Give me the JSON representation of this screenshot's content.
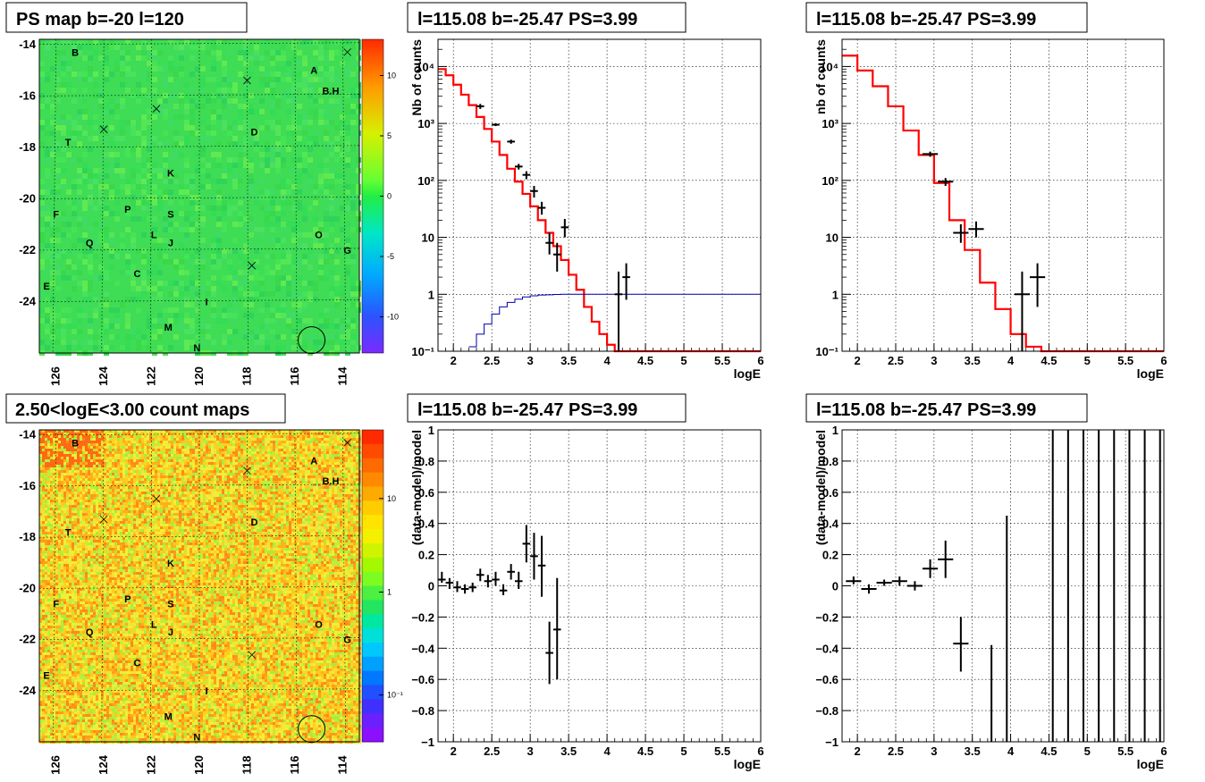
{
  "colors": {
    "model": "#ff0000",
    "efficiency": "#0000aa",
    "data": "#000000"
  },
  "maps": [
    {
      "title": "PS map b=-20 l=120",
      "type": "ts_map",
      "y_ticks": [
        "-14",
        "-16",
        "-18",
        "-20",
        "-22",
        "-24"
      ],
      "x_ticks": [
        "126",
        "124",
        "122",
        "120",
        "118",
        "116",
        "114"
      ],
      "colorbar_ticks": [
        "10",
        "5",
        "0",
        "-5",
        "-10"
      ]
    },
    {
      "title": "2.50<logE<3.00 count maps",
      "type": "count_map",
      "y_ticks": [
        "-14",
        "-16",
        "-18",
        "-20",
        "-22",
        "-24"
      ],
      "x_ticks": [
        "126",
        "124",
        "122",
        "120",
        "118",
        "116",
        "114"
      ],
      "colorbar_ticks": [
        "10",
        "1",
        "10⁻¹"
      ]
    }
  ],
  "sources": [
    {
      "name": "B",
      "l": 125.2,
      "b": -14.3
    },
    {
      "name": "A",
      "l": 115.2,
      "b": -15.0
    },
    {
      "name": "B.H",
      "l": 114.5,
      "b": -15.8
    },
    {
      "name": "D",
      "l": 117.7,
      "b": -17.4
    },
    {
      "name": "T",
      "l": 125.5,
      "b": -17.8
    },
    {
      "name": "K",
      "l": 121.2,
      "b": -19.0
    },
    {
      "name": "F",
      "l": 126.0,
      "b": -20.6
    },
    {
      "name": "P",
      "l": 123.0,
      "b": -20.4
    },
    {
      "name": "S",
      "l": 121.2,
      "b": -20.6
    },
    {
      "name": "O",
      "l": 115.0,
      "b": -21.4
    },
    {
      "name": "L",
      "l": 121.9,
      "b": -21.4
    },
    {
      "name": "J",
      "l": 121.2,
      "b": -21.7
    },
    {
      "name": "Q",
      "l": 124.6,
      "b": -21.7
    },
    {
      "name": "G",
      "l": 113.8,
      "b": -22.0
    },
    {
      "name": "C",
      "l": 122.6,
      "b": -22.9
    },
    {
      "name": "E",
      "l": 126.4,
      "b": -23.4
    },
    {
      "name": "I",
      "l": 119.7,
      "b": -24.0
    },
    {
      "name": "M",
      "l": 121.3,
      "b": -25.0
    },
    {
      "name": "N",
      "l": 120.1,
      "b": -25.8
    }
  ],
  "crosses": [
    {
      "l": 124.0,
      "b": -17.3
    },
    {
      "l": 121.8,
      "b": -16.5
    },
    {
      "l": 118.0,
      "b": -15.4
    },
    {
      "l": 117.8,
      "b": -22.6
    },
    {
      "l": 113.8,
      "b": -14.3
    }
  ],
  "circle": {
    "l": 115.3,
    "b": -25.5
  },
  "chart_data": [
    {
      "type": "line",
      "title": "l=115.08 b=-25.47 PS=3.99",
      "xlabel": "logE",
      "ylabel": "Nb of counts",
      "ylog": true,
      "xlim": [
        1.8,
        6
      ],
      "ylim": [
        0.1,
        30000
      ],
      "x_ticks": [
        "2",
        "2.5",
        "3",
        "3.5",
        "4",
        "4.5",
        "5",
        "5.5",
        "6"
      ],
      "y_tick_labels": [
        "10⁻¹",
        "1",
        "10",
        "10²",
        "10³",
        "10⁴"
      ],
      "series": [
        {
          "style": "step",
          "color": "model",
          "edges": [
            1.8,
            1.9,
            2.0,
            2.1,
            2.2,
            2.3,
            2.4,
            2.5,
            2.6,
            2.7,
            2.8,
            2.9,
            3.0,
            3.1,
            3.2,
            3.3,
            3.4,
            3.5,
            3.6,
            3.7,
            3.8,
            3.9,
            4.0,
            4.1,
            4.2,
            6.0
          ],
          "values": [
            9000,
            7000,
            4800,
            3200,
            2100,
            1300,
            800,
            480,
            280,
            160,
            95,
            58,
            35,
            20,
            12,
            7,
            4,
            2.2,
            1.2,
            0.6,
            0.33,
            0.2,
            0.13,
            0.1,
            0.1
          ]
        },
        {
          "style": "step",
          "color": "efficiency",
          "edges": [
            2.2,
            2.3,
            2.4,
            2.5,
            2.6,
            2.7,
            2.8,
            2.9,
            3.0,
            3.1,
            3.2,
            3.3,
            3.4,
            6.0
          ],
          "values": [
            0.12,
            0.2,
            0.3,
            0.45,
            0.6,
            0.72,
            0.82,
            0.9,
            0.94,
            0.97,
            0.98,
            0.99,
            1.0
          ]
        },
        {
          "style": "points",
          "color": "data",
          "points": [
            [
              2.35,
              2000,
              1800,
              2200,
              0.05
            ],
            [
              2.55,
              950,
              900,
              1010,
              0.05
            ],
            [
              2.75,
              480,
              440,
              520,
              0.05
            ],
            [
              2.85,
              175,
              155,
              195,
              0.05
            ],
            [
              2.95,
              125,
              105,
              145,
              0.05
            ],
            [
              3.05,
              65,
              50,
              80,
              0.05
            ],
            [
              3.15,
              33,
              25,
              42,
              0.05
            ],
            [
              3.25,
              8,
              5,
              12,
              0.05
            ],
            [
              3.35,
              5,
              2.5,
              8,
              0.05
            ],
            [
              3.45,
              15,
              10,
              21,
              0.05
            ],
            [
              4.15,
              1,
              0.1,
              2.5,
              0.05
            ],
            [
              4.25,
              2,
              0.8,
              3.5,
              0.05
            ]
          ]
        }
      ]
    },
    {
      "type": "line",
      "title": "l=115.08 b=-25.47 PS=3.99",
      "xlabel": "logE",
      "ylabel": "nb of counts",
      "ylog": true,
      "xlim": [
        1.8,
        6
      ],
      "ylim": [
        0.1,
        30000
      ],
      "x_ticks": [
        "2",
        "2.5",
        "3",
        "3.5",
        "4",
        "4.5",
        "5",
        "5.5",
        "6"
      ],
      "y_tick_labels": [
        "10⁻¹",
        "1",
        "10",
        "10²",
        "10³",
        "10⁴"
      ],
      "series": [
        {
          "style": "step",
          "color": "model",
          "edges": [
            1.8,
            2.0,
            2.2,
            2.4,
            2.6,
            2.8,
            3.0,
            3.2,
            3.4,
            3.6,
            3.8,
            4.0,
            4.2,
            4.4,
            6.0
          ],
          "values": [
            15500,
            8500,
            4500,
            2000,
            750,
            280,
            90,
            20,
            6,
            1.6,
            0.55,
            0.2,
            0.12,
            0.1
          ]
        },
        {
          "style": "points",
          "color": "data",
          "points": [
            [
              2.95,
              290,
              260,
              320,
              0.1
            ],
            [
              3.15,
              95,
              80,
              110,
              0.1
            ],
            [
              3.35,
              12,
              8,
              17,
              0.1
            ],
            [
              3.55,
              14,
              10,
              19,
              0.1
            ],
            [
              4.15,
              1,
              0.1,
              2.5,
              0.1
            ],
            [
              4.35,
              2,
              0.6,
              3.5,
              0.1
            ]
          ]
        }
      ]
    },
    {
      "type": "scatter",
      "title": "l=115.08 b=-25.47 PS=3.99",
      "xlabel": "logE",
      "ylabel": "(data-model)/model",
      "xlim": [
        1.8,
        6
      ],
      "ylim": [
        -1,
        1
      ],
      "x_ticks": [
        "2",
        "2.5",
        "3",
        "3.5",
        "4",
        "4.5",
        "5",
        "5.5",
        "6"
      ],
      "y_tick_labels": [
        "−1",
        "−0.8",
        "−0.6",
        "−0.4",
        "−0.2",
        "0",
        "0.2",
        "0.4",
        "0.6",
        "0.8",
        "1"
      ],
      "series": [
        {
          "style": "points",
          "color": "data",
          "points": [
            [
              1.85,
              0.04,
              0.02,
              0.09,
              0.05
            ],
            [
              1.95,
              0.02,
              -0.02,
              0.05,
              0.05
            ],
            [
              2.05,
              -0.01,
              -0.04,
              0.03,
              0.05
            ],
            [
              2.15,
              -0.02,
              -0.05,
              0.01,
              0.05
            ],
            [
              2.25,
              -0.01,
              -0.04,
              0.02,
              0.05
            ],
            [
              2.35,
              0.07,
              0.03,
              0.11,
              0.05
            ],
            [
              2.45,
              0.03,
              -0.01,
              0.07,
              0.05
            ],
            [
              2.55,
              0.04,
              0.0,
              0.09,
              0.05
            ],
            [
              2.65,
              -0.03,
              -0.06,
              0.01,
              0.05
            ],
            [
              2.75,
              0.09,
              0.04,
              0.14,
              0.05
            ],
            [
              2.85,
              0.03,
              -0.02,
              0.09,
              0.05
            ],
            [
              2.95,
              0.27,
              0.15,
              0.39,
              0.05
            ],
            [
              3.05,
              0.19,
              0.04,
              0.34,
              0.05
            ],
            [
              3.15,
              0.13,
              -0.07,
              0.32,
              0.05
            ],
            [
              3.25,
              -0.43,
              -0.63,
              -0.23,
              0.05
            ],
            [
              3.35,
              -0.28,
              -0.6,
              0.05,
              0.05
            ]
          ]
        }
      ]
    },
    {
      "type": "scatter",
      "title": "l=115.08 b=-25.47 PS=3.99",
      "xlabel": "logE",
      "ylabel": "(data-model)/model",
      "xlim": [
        1.8,
        6
      ],
      "ylim": [
        -1,
        1
      ],
      "x_ticks": [
        "2",
        "2.5",
        "3",
        "3.5",
        "4",
        "4.5",
        "5",
        "5.5",
        "6"
      ],
      "y_tick_labels": [
        "−1",
        "−0.8",
        "−0.6",
        "−0.4",
        "−0.2",
        "0",
        "0.2",
        "0.4",
        "0.6",
        "0.8",
        "1"
      ],
      "series": [
        {
          "style": "points",
          "color": "data",
          "points": [
            [
              1.95,
              0.03,
              0.01,
              0.06,
              0.1
            ],
            [
              2.15,
              -0.02,
              -0.05,
              0.01,
              0.1
            ],
            [
              2.35,
              0.02,
              0.0,
              0.04,
              0.1
            ],
            [
              2.55,
              0.03,
              0.0,
              0.06,
              0.1
            ],
            [
              2.75,
              0.0,
              -0.03,
              0.03,
              0.1
            ],
            [
              2.95,
              0.11,
              0.05,
              0.17,
              0.1
            ],
            [
              3.15,
              0.17,
              0.05,
              0.29,
              0.1
            ],
            [
              3.35,
              -0.37,
              -0.55,
              -0.2,
              0.1
            ],
            [
              3.75,
              -1,
              -1,
              -0.38,
              0
            ],
            [
              3.95,
              -1,
              -1,
              0.45,
              0
            ],
            [
              4.55,
              -1,
              -1,
              1,
              0
            ],
            [
              4.75,
              -1,
              -1,
              1,
              0
            ],
            [
              4.95,
              -1,
              -1,
              1,
              0
            ],
            [
              5.15,
              -1,
              -1,
              1,
              0
            ],
            [
              5.35,
              -1,
              -1,
              1,
              0
            ],
            [
              5.55,
              -1,
              -1,
              1,
              0
            ],
            [
              5.75,
              -1,
              -1,
              1,
              0
            ],
            [
              5.95,
              -1,
              -1,
              1,
              0
            ]
          ]
        }
      ]
    }
  ]
}
